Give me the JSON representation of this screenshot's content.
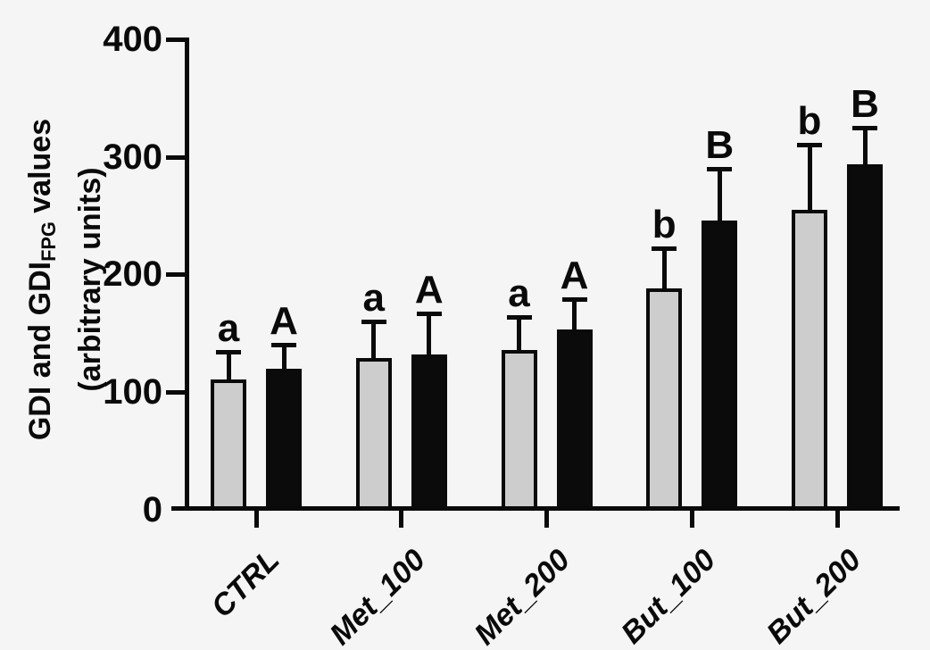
{
  "figure": {
    "background": "#f5f5f6",
    "axis_color": "#0a0a0a"
  },
  "chart_data": {
    "type": "bar",
    "title": "",
    "ylabel_line1": {
      "pre": "GDI and GDI",
      "sub": "FPG",
      "post": " values"
    },
    "ylabel_line2": "(arbitrary units)",
    "xlabel": "",
    "categories": [
      "CTRL",
      "Met_100",
      "Met_200",
      "But_100",
      "But_200"
    ],
    "series": [
      {
        "name": "GDI",
        "appearance": "gray-bars",
        "fill": "#cdcdcd",
        "values": [
          111,
          129,
          136,
          188,
          255
        ],
        "errors_plus": [
          23,
          31,
          28,
          34,
          55
        ],
        "bar_labels": [
          "a",
          "a",
          "a",
          "b",
          "b"
        ]
      },
      {
        "name": "GDI_FPG",
        "appearance": "black-bars",
        "fill": "#0b0b0b",
        "values": [
          120,
          132,
          153,
          246,
          294
        ],
        "errors_plus": [
          20,
          35,
          26,
          44,
          31
        ],
        "bar_labels": [
          "A",
          "A",
          "A",
          "B",
          "B"
        ]
      }
    ],
    "ylim": [
      0,
      400
    ],
    "yticks": [
      0,
      100,
      200,
      300,
      400
    ],
    "grid": false,
    "legend": "none",
    "error_bars": "upper-only",
    "bar_outline_color": "#0a0a0a"
  }
}
